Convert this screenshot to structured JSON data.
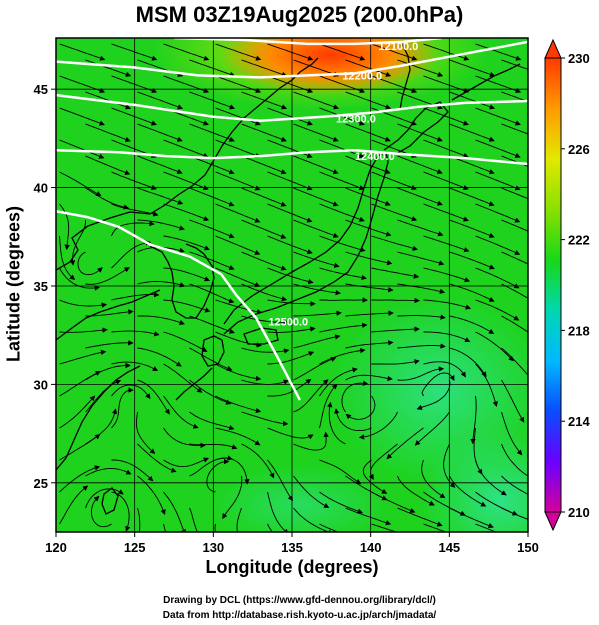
{
  "title": "MSM 03Z19Aug2025 (200.0hPa)",
  "xlabel": "Longitude (degrees)",
  "ylabel": "Latitude  (degrees)",
  "credits": [
    "Drawing by DCL (https://www.gfd-dennou.org/library/dcl/)",
    "Data from http://database.rish.kyoto-u.ac.jp/arch/jmadata/"
  ],
  "chart_data": {
    "type": "heatmap",
    "x_ticks": [
      "120",
      "125",
      "130",
      "135",
      "140",
      "145",
      "150"
    ],
    "y_ticks": [
      "25",
      "30",
      "35",
      "40",
      "45"
    ],
    "xlim": [
      120,
      150
    ],
    "ylim": [
      22.5,
      47.6
    ],
    "colorbar": {
      "ticks": [
        "230",
        "226",
        "222",
        "218",
        "214",
        "210"
      ],
      "range": [
        210,
        230
      ],
      "colors": [
        "#d4009c",
        "#6a00ff",
        "#0a4cff",
        "#00b9ff",
        "#00d7b0",
        "#18d818",
        "#8ae000",
        "#e3e800",
        "#ff9a00",
        "#ff3a00"
      ]
    },
    "contour_labels": [
      "12100.0",
      "12200.0",
      "12300.0",
      "12400.0",
      "12500.0"
    ],
    "contours_geo": [
      {
        "label": "12100.0",
        "lon": [
          127.5,
          132,
          136,
          139,
          142,
          144.5
        ],
        "lat": [
          47.6,
          47.5,
          47.3,
          47.3,
          47.4,
          47.6
        ],
        "label_at": [
          140.5,
          47.2
        ]
      },
      {
        "label": "12200.0",
        "lon": [
          120,
          125,
          129,
          133,
          136,
          139,
          142,
          146,
          150
        ],
        "lat": [
          46.4,
          46.1,
          45.7,
          45.6,
          45.7,
          45.8,
          46.2,
          46.8,
          47.4
        ],
        "label_at": [
          138.2,
          45.7
        ]
      },
      {
        "label": "12300.0",
        "lon": [
          120,
          125,
          130,
          133,
          137,
          140,
          143,
          146,
          150
        ],
        "lat": [
          44.7,
          44.2,
          43.6,
          43.4,
          43.6,
          43.8,
          44.1,
          44.3,
          44.4
        ],
        "label_at": [
          137.8,
          43.5
        ]
      },
      {
        "label": "12400.0",
        "lon": [
          120,
          124,
          127,
          130,
          133,
          136,
          139,
          142,
          146,
          150
        ],
        "lat": [
          41.9,
          41.8,
          41.6,
          41.5,
          41.6,
          41.8,
          41.9,
          41.7,
          41.5,
          41.2
        ],
        "label_at": [
          139.0,
          41.6
        ]
      },
      {
        "label": "12500.0",
        "lon": [
          120,
          122,
          124,
          126,
          128.5,
          130.5,
          131.5,
          132.7,
          134,
          135.5
        ],
        "lat": [
          38.8,
          38.5,
          38.0,
          37.1,
          36.5,
          35.6,
          34.5,
          33.4,
          31.5,
          29.2
        ],
        "label_at": [
          133.5,
          33.2
        ]
      }
    ]
  }
}
